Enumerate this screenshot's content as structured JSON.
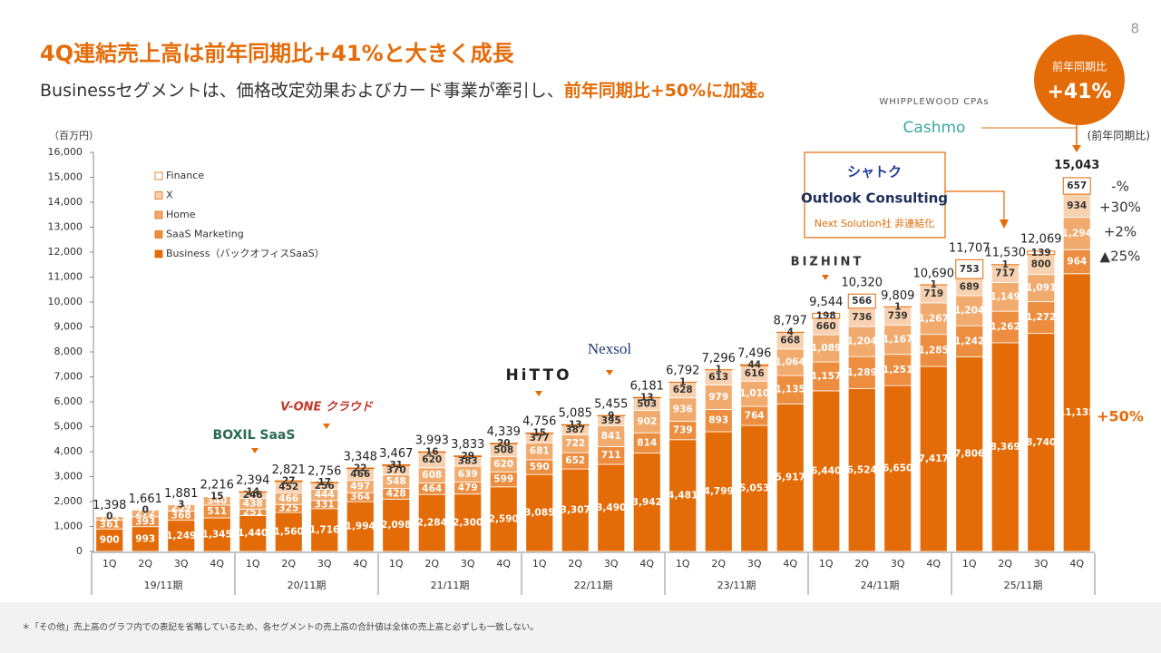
{
  "page_number": "8",
  "title": "4Q連結売上高は前年同期比+41%と大きく成長",
  "subtitle": [
    "Businessセグメントは、価格改定効果およびカード事業が牽引し、",
    "前年同期比+50%に加速。"
  ],
  "footnote": "＊「その他」売上高のグラフ内での表記を省略しているため、各セグメントの売上高の合計値は全体の売上高と必ずしも一致しない。",
  "badge": {
    "label": "前年同期比",
    "value": "+41%"
  },
  "logos": [
    "BOXIL SaaS",
    "V-ONE クラウド",
    "HiTTO",
    "Nexsol",
    "BIZHINT",
    "WHIPPLEWOOD CPAs",
    "Cashmo",
    "シャトク",
    "Outlook Consulting"
  ],
  "deconsolidation_note": "Next Solution社 非連結化",
  "yoy_header": "(前年同期比)",
  "yoy": [
    "-%",
    "+30%",
    "+2%",
    "▲25%",
    "+50%"
  ],
  "chart_data": {
    "type": "stacked_bar",
    "y_label": "（百万円）",
    "categories": [
      "1Q",
      "2Q",
      "3Q",
      "4Q",
      "1Q",
      "2Q",
      "3Q",
      "4Q",
      "1Q",
      "2Q",
      "3Q",
      "4Q",
      "1Q",
      "2Q",
      "3Q",
      "4Q",
      "1Q",
      "2Q",
      "3Q",
      "4Q",
      "1Q",
      "2Q",
      "3Q",
      "4Q",
      "1Q",
      "2Q",
      "3Q",
      "4Q"
    ],
    "groups": [
      "19/11期",
      "20/11期",
      "21/11期",
      "22/11期",
      "23/11期",
      "24/11期",
      "25/11期"
    ],
    "ylim": [
      0,
      16000
    ],
    "yticks": [
      0,
      {
        "value": 1000,
        "label": "1,000"
      },
      {
        "value": 2000,
        "label": "2,000"
      },
      {
        "value": 3000,
        "label": "3,000"
      },
      {
        "value": 4000,
        "label": "4,000"
      },
      {
        "value": 5000,
        "label": "5,000"
      },
      {
        "value": 6000,
        "label": "6,000"
      },
      {
        "value": 7000,
        "label": "7,000"
      },
      {
        "value": 8000,
        "label": "8,000"
      },
      {
        "value": 9000,
        "label": "9,000"
      },
      {
        "value": 10000,
        "label": "10,000"
      },
      {
        "value": 11000,
        "label": "11,000"
      },
      {
        "value": 12000,
        "label": "12,000"
      },
      {
        "value": 13000,
        "label": "13,000"
      },
      {
        "value": 14000,
        "label": "14,000"
      },
      {
        "value": 15000,
        "label": "15,000"
      },
      {
        "value": 16000,
        "label": "16,000"
      }
    ],
    "series": [
      {
        "name": "Business（バックオフィスSaaS）",
        "color": "#e36c09",
        "values": [
          900,
          993,
          1249,
          1345,
          1440,
          1560,
          1716,
          1994,
          2098,
          2284,
          2300,
          2590,
          3085,
          3307,
          3490,
          3942,
          4481,
          4799,
          5053,
          5917,
          6440,
          6524,
          6650,
          7417,
          7806,
          8369,
          8740,
          11135
        ],
        "value_labels": [
          "900",
          "993",
          "1,249",
          "1,345",
          "1,440",
          "1,560",
          "1,716",
          "1,994",
          "2,098",
          "2,284",
          "2,300",
          "2,590",
          "3,085",
          "3,307",
          "3,490",
          "3,942",
          "4,481",
          "4,799",
          "5,053",
          "5,917",
          "6,440",
          "6,524",
          "6,650",
          "7,417",
          "7,806",
          "8,369",
          "8,740",
          "11,135"
        ]
      },
      {
        "name": "SaaS Marketing",
        "color": "#ec8d3f",
        "values": [
          361,
          393,
          368,
          511,
          251,
          325,
          331,
          364,
          428,
          464,
          479,
          599,
          590,
          652,
          711,
          814,
          739,
          893,
          764,
          1135,
          1157,
          1289,
          1251,
          1285,
          1242,
          1262,
          1272,
          964
        ],
        "value_labels": [
          "361",
          "393",
          "368",
          "511",
          "251",
          "325",
          "331",
          "364",
          "428",
          "464",
          "479",
          "599",
          "590",
          "652",
          "711",
          "814",
          "739",
          "893",
          "764",
          "1,135",
          "1,157",
          "1,289",
          "1,251",
          "1,285",
          "1,242",
          "1,262",
          "1,272",
          "964"
        ]
      },
      {
        "name": "Home",
        "color": "#f2ab6e",
        "values": [
          133,
          272,
          259,
          340,
          438,
          466,
          444,
          497,
          548,
          608,
          639,
          620,
          681,
          722,
          841,
          902,
          936,
          979,
          1010,
          1064,
          1089,
          1204,
          1167,
          1267,
          1204,
          1149,
          1091,
          1294
        ],
        "value_labels": [
          "133",
          "272",
          "259",
          "340",
          "438",
          "466",
          "444",
          "497",
          "548",
          "608",
          "639",
          "620",
          "681",
          "722",
          "841",
          "902",
          "936",
          "979",
          "1,010",
          "1,064",
          "1,089",
          "1,204",
          "1,167",
          "1,267",
          "1,204",
          "1,149",
          "1,091",
          "1,294"
        ]
      },
      {
        "name": "X",
        "color": "#f8d2b0",
        "values": [
          0,
          0,
          3,
          15,
          248,
          452,
          256,
          466,
          370,
          620,
          383,
          508,
          377,
          387,
          395,
          503,
          628,
          613,
          616,
          668,
          660,
          736,
          739,
          719,
          689,
          717,
          800,
          934
        ]
      },
      {
        "name": "Finance",
        "color": "#ffffff",
        "values": [
          null,
          null,
          null,
          null,
          14,
          27,
          17,
          22,
          31,
          16,
          29,
          20,
          15,
          13,
          9,
          13,
          1,
          1,
          44,
          4,
          198,
          566,
          1,
          1,
          753,
          1,
          139,
          657
        ]
      }
    ],
    "totals": {
      "values": [
        1398,
        1661,
        1881,
        2216,
        2394,
        2821,
        2756,
        3348,
        3467,
        3993,
        3833,
        4339,
        4756,
        5085,
        5455,
        6181,
        6792,
        7296,
        7496,
        8797,
        9544,
        10320,
        9809,
        10690,
        11707,
        11530,
        12069,
        15043
      ],
      "value_labels": [
        "1,398",
        "1,661",
        "1,881",
        "2,216",
        "2,394",
        "2,821",
        "2,756",
        "3,348",
        "3,467",
        "3,993",
        "3,833",
        "4,339",
        "4,756",
        "5,085",
        "5,455",
        "6,181",
        "6,792",
        "7,296",
        "7,496",
        "8,797",
        "9,544",
        "10,320",
        "9,809",
        "10,690",
        "11,707",
        "11,530",
        "12,069",
        "15,043"
      ]
    }
  }
}
